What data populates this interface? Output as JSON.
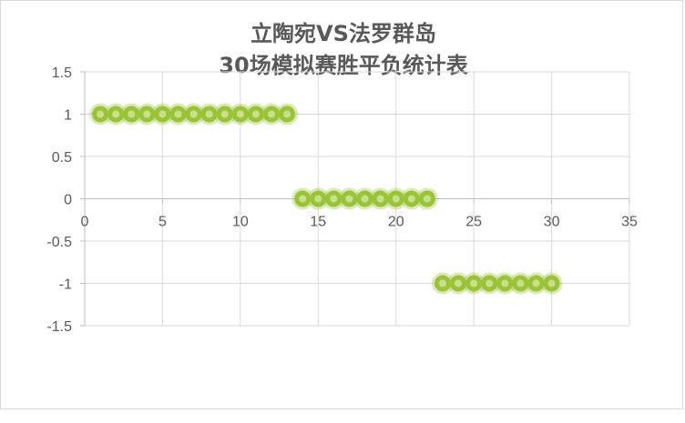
{
  "chart_data": {
    "type": "scatter",
    "title_lines": [
      "立陶宛VS法罗群岛",
      "30场模拟赛胜平负统计表"
    ],
    "xlabel": "",
    "ylabel": "",
    "xlim": [
      0,
      35
    ],
    "ylim": [
      -1.5,
      1.5
    ],
    "x_ticks": [
      "0",
      "5",
      "10",
      "15",
      "20",
      "25",
      "30",
      "35"
    ],
    "y_ticks": [
      "1.5",
      "1",
      "0.5",
      "0",
      "-0.5",
      "-1",
      "-1.5"
    ],
    "grid": true,
    "marker_color": "#9bc339",
    "points": [
      {
        "x": 1,
        "y": 1
      },
      {
        "x": 2,
        "y": 1
      },
      {
        "x": 3,
        "y": 1
      },
      {
        "x": 4,
        "y": 1
      },
      {
        "x": 5,
        "y": 1
      },
      {
        "x": 6,
        "y": 1
      },
      {
        "x": 7,
        "y": 1
      },
      {
        "x": 8,
        "y": 1
      },
      {
        "x": 9,
        "y": 1
      },
      {
        "x": 10,
        "y": 1
      },
      {
        "x": 11,
        "y": 1
      },
      {
        "x": 12,
        "y": 1
      },
      {
        "x": 13,
        "y": 1
      },
      {
        "x": 14,
        "y": 0
      },
      {
        "x": 15,
        "y": 0
      },
      {
        "x": 16,
        "y": 0
      },
      {
        "x": 17,
        "y": 0
      },
      {
        "x": 18,
        "y": 0
      },
      {
        "x": 19,
        "y": 0
      },
      {
        "x": 20,
        "y": 0
      },
      {
        "x": 21,
        "y": 0
      },
      {
        "x": 22,
        "y": 0
      },
      {
        "x": 23,
        "y": -1
      },
      {
        "x": 24,
        "y": -1
      },
      {
        "x": 25,
        "y": -1
      },
      {
        "x": 26,
        "y": -1
      },
      {
        "x": 27,
        "y": -1
      },
      {
        "x": 28,
        "y": -1
      },
      {
        "x": 29,
        "y": -1
      },
      {
        "x": 30,
        "y": -1
      }
    ]
  }
}
